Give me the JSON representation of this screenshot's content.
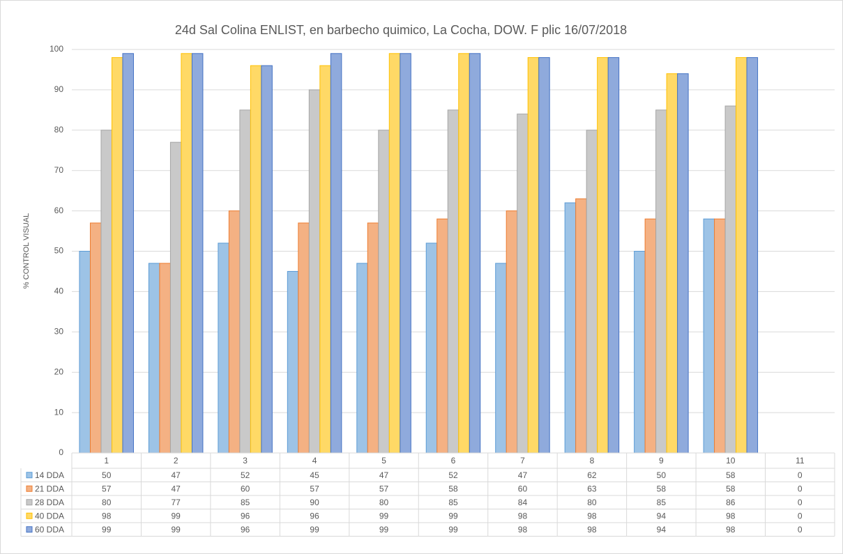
{
  "chart_data": {
    "type": "bar",
    "title": "24d Sal Colina ENLIST, en barbecho quimico, La Cocha, DOW. F plic 16/07/2018",
    "y_label": "% CONTROL VISUAL",
    "categories": [
      "1",
      "2",
      "3",
      "4",
      "5",
      "6",
      "7",
      "8",
      "9",
      "10",
      "11"
    ],
    "series": [
      {
        "name": "14 DDA",
        "color": "#9dc3e6",
        "values": [
          50,
          47,
          52,
          45,
          47,
          52,
          47,
          62,
          50,
          58,
          0
        ]
      },
      {
        "name": "21 DDA",
        "color": "#f4b183",
        "values": [
          57,
          47,
          60,
          57,
          57,
          58,
          60,
          63,
          58,
          58,
          0
        ]
      },
      {
        "name": "28 DDA",
        "color": "#c9c9c9",
        "values": [
          80,
          77,
          85,
          90,
          80,
          85,
          84,
          80,
          85,
          86,
          0
        ]
      },
      {
        "name": "40 DDA",
        "color": "#ffd966",
        "values": [
          98,
          99,
          96,
          96,
          99,
          99,
          98,
          98,
          94,
          98,
          0
        ]
      },
      {
        "name": "60 DDA",
        "color": "#8faadc",
        "values": [
          99,
          99,
          96,
          99,
          99,
          99,
          98,
          98,
          94,
          98,
          0
        ]
      }
    ],
    "ylim": [
      0,
      100
    ],
    "yticks": [
      0,
      10,
      20,
      30,
      40,
      50,
      60,
      70,
      80,
      90,
      100
    ],
    "grid": true,
    "legend": "table"
  }
}
